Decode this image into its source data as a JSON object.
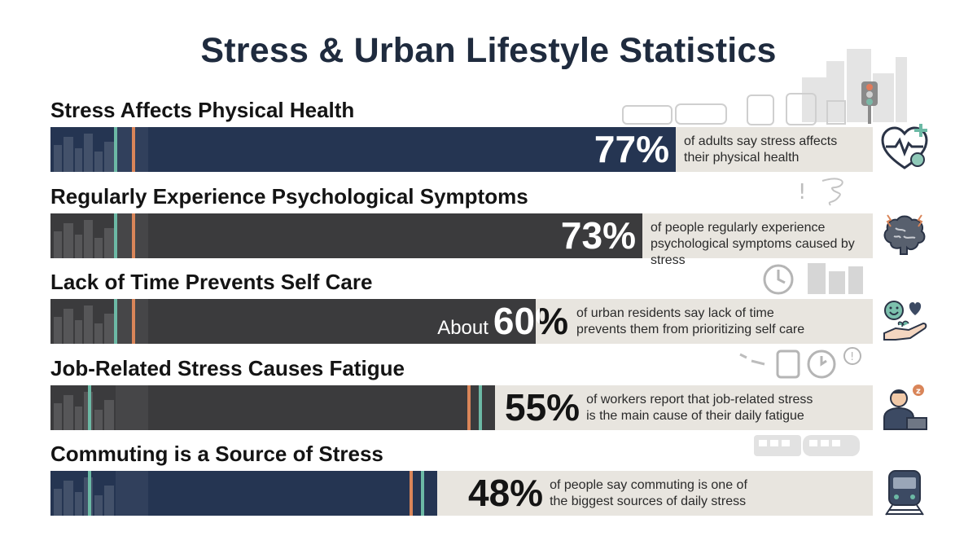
{
  "title": "Stress & Urban Lifestyle Statistics",
  "colors": {
    "navy": "#253552",
    "charcoal": "#3b3b3d",
    "track": "#e8e5df",
    "teal": "#6cb9a5",
    "orange": "#d98559"
  },
  "chart_data": {
    "type": "bar",
    "orientation": "horizontal",
    "title": "Stress & Urban Lifestyle Statistics",
    "xlim": [
      0,
      100
    ],
    "unit": "%",
    "categories": [
      "Stress Affects Physical Health",
      "Regularly Experience Psychological Symptoms",
      "Lack of Time Prevents Self Care",
      "Job-Related Stress Causes Fatigue",
      "Commuting is a Source of Stress"
    ],
    "values": [
      77,
      73,
      60,
      55,
      48
    ],
    "bars": [
      {
        "title": "Stress Affects Physical Health",
        "value": 77,
        "prefix": "",
        "label": "77%",
        "desc": [
          "of adults say stress affects",
          "their physical health"
        ],
        "color": "#253552",
        "icon": "heart-health-icon"
      },
      {
        "title": "Regularly Experience Psychological Symptoms",
        "value": 73,
        "prefix": "",
        "label": "73%",
        "desc": [
          "of people regularly experience",
          "psychological symptoms caused by stress"
        ],
        "color": "#3b3b3d",
        "icon": "brain-icon"
      },
      {
        "title": "Lack of Time Prevents Self Care",
        "value": 60,
        "prefix": "About",
        "label": "60%",
        "desc": [
          "of urban residents say lack of time",
          "prevents them from prioritizing self care"
        ],
        "color": "#3b3b3d",
        "icon": "self-care-hand-icon"
      },
      {
        "title": "Job-Related Stress Causes Fatigue",
        "value": 55,
        "prefix": "",
        "label": "55%",
        "desc": [
          "of workers report that job-related stress",
          "is the main cause of their daily fatigue"
        ],
        "color": "#3b3b3d",
        "icon": "tired-worker-icon"
      },
      {
        "title": "Commuting is a Source of Stress",
        "value": 48,
        "prefix": "",
        "label": "48%",
        "desc": [
          "of people say commuting is one of",
          "the biggest sources of daily stress"
        ],
        "color": "#253552",
        "icon": "train-icon"
      }
    ]
  }
}
